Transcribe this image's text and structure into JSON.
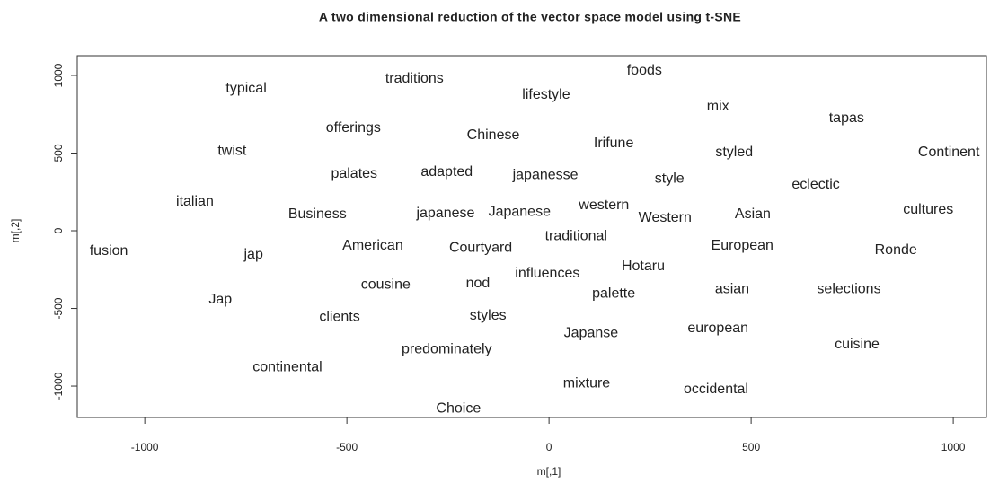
{
  "chart_data": {
    "type": "text-scatter",
    "title": "A two dimensional reduction of the vector space model using t-SNE",
    "x_label": "m[,1]",
    "y_label": "m[,2]",
    "labels": [
      "typical",
      "traditions",
      "foods",
      "lifestyle",
      "mix",
      "tapas",
      "offerings",
      "Chinese",
      "Irifune",
      "twist",
      "styled",
      "Continent",
      "palates",
      "adapted",
      "japanesse",
      "style",
      "eclectic",
      "italian",
      "Business",
      "japanese",
      "Japanese",
      "western",
      "Western",
      "Asian",
      "cultures",
      "traditional",
      "fusion",
      "jap",
      "American",
      "Courtyard",
      "European",
      "Ronde",
      "Hotaru",
      "influences",
      "nod",
      "cousine",
      "palette",
      "asian",
      "selections",
      "Jap",
      "clients",
      "styles",
      "Japanse",
      "european",
      "predominately",
      "cuisine",
      "continental",
      "mixture",
      "occidental",
      "Choice"
    ],
    "x": [
      -749,
      -333,
      236,
      -7,
      418,
      736,
      -484,
      -138,
      160,
      -784,
      458,
      989,
      -482,
      -253,
      -9,
      298,
      660,
      -876,
      -573,
      -256,
      -73,
      136,
      287,
      504,
      938,
      67,
      -1089,
      -731,
      -436,
      -169,
      478,
      858,
      233,
      -4,
      -176,
      -404,
      160,
      453,
      742,
      -813,
      -518,
      -151,
      104,
      418,
      -253,
      762,
      -647,
      93,
      413,
      -224
    ],
    "y": [
      913,
      977,
      1029,
      873,
      798,
      723,
      659,
      613,
      561,
      514,
      503,
      503,
      364,
      376,
      358,
      335,
      295,
      185,
      104,
      110,
      121,
      162,
      81,
      104,
      133,
      -35,
      -133,
      -156,
      -98,
      -110,
      -98,
      -127,
      -231,
      -277,
      -341,
      -347,
      -405,
      -376,
      -376,
      -445,
      -555,
      -549,
      -659,
      -630,
      -763,
      -734,
      -879,
      -983,
      -1023,
      -1145
    ],
    "xlim": [
      -1167,
      1082
    ],
    "ylim": [
      -1202,
      1127
    ],
    "xticks": [
      -1000,
      -500,
      0,
      500,
      1000
    ],
    "yticks": [
      -1000,
      -500,
      0,
      500,
      1000
    ]
  }
}
